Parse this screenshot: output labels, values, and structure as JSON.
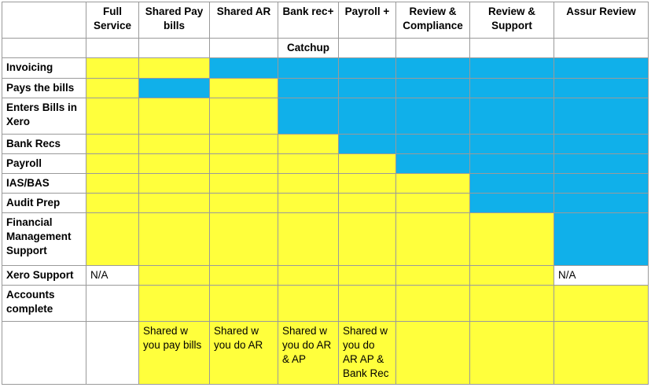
{
  "colors": {
    "yellow": "#ffff3c",
    "blue": "#10b0ea",
    "white": "#ffffff"
  },
  "headers": [
    "",
    "Full Service",
    "Shared Pay bills",
    "Shared AR",
    "Bank rec+",
    "Payroll +",
    "Review & Compliance",
    "Review & Support",
    "Assur Review"
  ],
  "subheader": [
    "",
    "",
    "",
    "",
    "Catchup",
    "",
    "",
    "",
    ""
  ],
  "rows": [
    {
      "label": "Invoicing",
      "cells": [
        {
          "fill": "yellow",
          "text": ""
        },
        {
          "fill": "yellow",
          "text": ""
        },
        {
          "fill": "blue",
          "text": ""
        },
        {
          "fill": "blue",
          "text": ""
        },
        {
          "fill": "blue",
          "text": ""
        },
        {
          "fill": "blue",
          "text": ""
        },
        {
          "fill": "blue",
          "text": ""
        },
        {
          "fill": "blue",
          "text": ""
        }
      ]
    },
    {
      "label": "Pays the bills",
      "cells": [
        {
          "fill": "yellow",
          "text": ""
        },
        {
          "fill": "blue",
          "text": ""
        },
        {
          "fill": "yellow",
          "text": ""
        },
        {
          "fill": "blue",
          "text": ""
        },
        {
          "fill": "blue",
          "text": ""
        },
        {
          "fill": "blue",
          "text": ""
        },
        {
          "fill": "blue",
          "text": ""
        },
        {
          "fill": "blue",
          "text": ""
        }
      ]
    },
    {
      "label": "Enters Bills in Xero",
      "cells": [
        {
          "fill": "yellow",
          "text": ""
        },
        {
          "fill": "yellow",
          "text": ""
        },
        {
          "fill": "yellow",
          "text": ""
        },
        {
          "fill": "blue",
          "text": ""
        },
        {
          "fill": "blue",
          "text": ""
        },
        {
          "fill": "blue",
          "text": ""
        },
        {
          "fill": "blue",
          "text": ""
        },
        {
          "fill": "blue",
          "text": ""
        }
      ]
    },
    {
      "label": "Bank Recs",
      "cells": [
        {
          "fill": "yellow",
          "text": ""
        },
        {
          "fill": "yellow",
          "text": ""
        },
        {
          "fill": "yellow",
          "text": ""
        },
        {
          "fill": "yellow",
          "text": ""
        },
        {
          "fill": "blue",
          "text": ""
        },
        {
          "fill": "blue",
          "text": ""
        },
        {
          "fill": "blue",
          "text": ""
        },
        {
          "fill": "blue",
          "text": ""
        }
      ]
    },
    {
      "label": "Payroll",
      "cells": [
        {
          "fill": "yellow",
          "text": ""
        },
        {
          "fill": "yellow",
          "text": ""
        },
        {
          "fill": "yellow",
          "text": ""
        },
        {
          "fill": "yellow",
          "text": ""
        },
        {
          "fill": "yellow",
          "text": ""
        },
        {
          "fill": "blue",
          "text": ""
        },
        {
          "fill": "blue",
          "text": ""
        },
        {
          "fill": "blue",
          "text": ""
        }
      ]
    },
    {
      "label": "IAS/BAS",
      "cells": [
        {
          "fill": "yellow",
          "text": ""
        },
        {
          "fill": "yellow",
          "text": ""
        },
        {
          "fill": "yellow",
          "text": ""
        },
        {
          "fill": "yellow",
          "text": ""
        },
        {
          "fill": "yellow",
          "text": ""
        },
        {
          "fill": "yellow",
          "text": ""
        },
        {
          "fill": "blue",
          "text": ""
        },
        {
          "fill": "blue",
          "text": ""
        }
      ]
    },
    {
      "label": "Audit Prep",
      "cells": [
        {
          "fill": "yellow",
          "text": ""
        },
        {
          "fill": "yellow",
          "text": ""
        },
        {
          "fill": "yellow",
          "text": ""
        },
        {
          "fill": "yellow",
          "text": ""
        },
        {
          "fill": "yellow",
          "text": ""
        },
        {
          "fill": "yellow",
          "text": ""
        },
        {
          "fill": "blue",
          "text": ""
        },
        {
          "fill": "blue",
          "text": ""
        }
      ]
    },
    {
      "label": "Financial Management Support",
      "cells": [
        {
          "fill": "yellow",
          "text": ""
        },
        {
          "fill": "yellow",
          "text": ""
        },
        {
          "fill": "yellow",
          "text": ""
        },
        {
          "fill": "yellow",
          "text": ""
        },
        {
          "fill": "yellow",
          "text": ""
        },
        {
          "fill": "yellow",
          "text": ""
        },
        {
          "fill": "yellow",
          "text": ""
        },
        {
          "fill": "blue",
          "text": ""
        }
      ]
    },
    {
      "label": "Xero Support",
      "cells": [
        {
          "fill": "white",
          "text": "N/A"
        },
        {
          "fill": "yellow",
          "text": ""
        },
        {
          "fill": "yellow",
          "text": ""
        },
        {
          "fill": "yellow",
          "text": ""
        },
        {
          "fill": "yellow",
          "text": ""
        },
        {
          "fill": "yellow",
          "text": ""
        },
        {
          "fill": "yellow",
          "text": ""
        },
        {
          "fill": "white",
          "text": "N/A"
        }
      ]
    },
    {
      "label": "Accounts complete",
      "cells": [
        {
          "fill": "white",
          "text": ""
        },
        {
          "fill": "yellow",
          "text": ""
        },
        {
          "fill": "yellow",
          "text": ""
        },
        {
          "fill": "yellow",
          "text": ""
        },
        {
          "fill": "yellow",
          "text": ""
        },
        {
          "fill": "yellow",
          "text": ""
        },
        {
          "fill": "yellow",
          "text": ""
        },
        {
          "fill": "yellow",
          "text": ""
        }
      ]
    },
    {
      "label": "",
      "cells": [
        {
          "fill": "white",
          "text": ""
        },
        {
          "fill": "yellow",
          "text": "Shared w you pay bills"
        },
        {
          "fill": "yellow",
          "text": "Shared w you do AR"
        },
        {
          "fill": "yellow",
          "text": "Shared w you do AR & AP"
        },
        {
          "fill": "yellow",
          "text": "Shared w you do AR AP & Bank Rec"
        },
        {
          "fill": "yellow",
          "text": ""
        },
        {
          "fill": "yellow",
          "text": ""
        },
        {
          "fill": "yellow",
          "text": ""
        }
      ]
    }
  ]
}
